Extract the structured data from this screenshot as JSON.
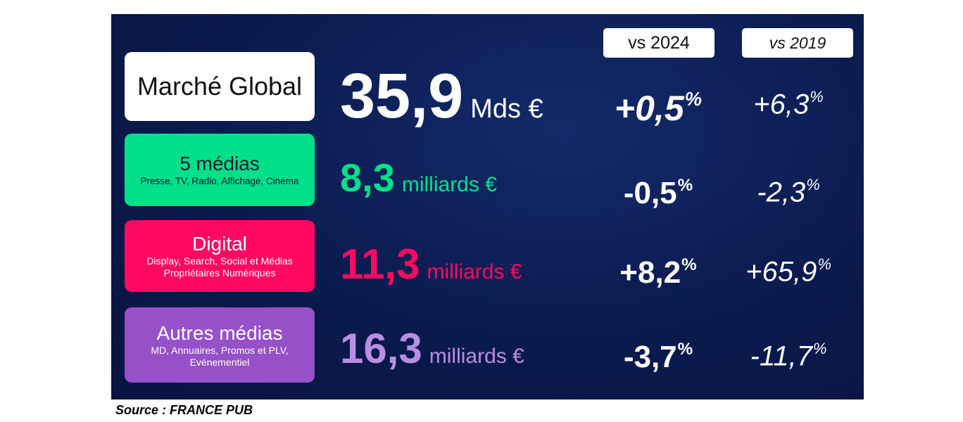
{
  "headers": [
    "vs 2024",
    "vs 2019"
  ],
  "percent_sign": "%",
  "rows": [
    {
      "label": "Marché Global",
      "sublabel": null,
      "value": "35,9",
      "unit": "Mds €",
      "change_2024": "+0,5",
      "change_2019": "+6,3"
    },
    {
      "label": "5 médias",
      "sublabel": "Presse, TV, Radio, Affichage, Cinéma",
      "value": "8,3",
      "unit": "milliards €",
      "change_2024": "-0,5",
      "change_2019": "-2,3"
    },
    {
      "label": "Digital",
      "sublabel": "Display, Search, Social et Médias Propriétaires Numériques",
      "value": "11,3",
      "unit": "milliards €",
      "change_2024": "+8,2",
      "change_2019": "+65,9"
    },
    {
      "label": "Autres médias",
      "sublabel": "MD, Annuaires, Promos et PLV, Evénementiel",
      "value": "16,3",
      "unit": "milliards €",
      "change_2024": "-3,7",
      "change_2019": "-11,7"
    }
  ],
  "source": "Source : FRANCE PUB"
}
